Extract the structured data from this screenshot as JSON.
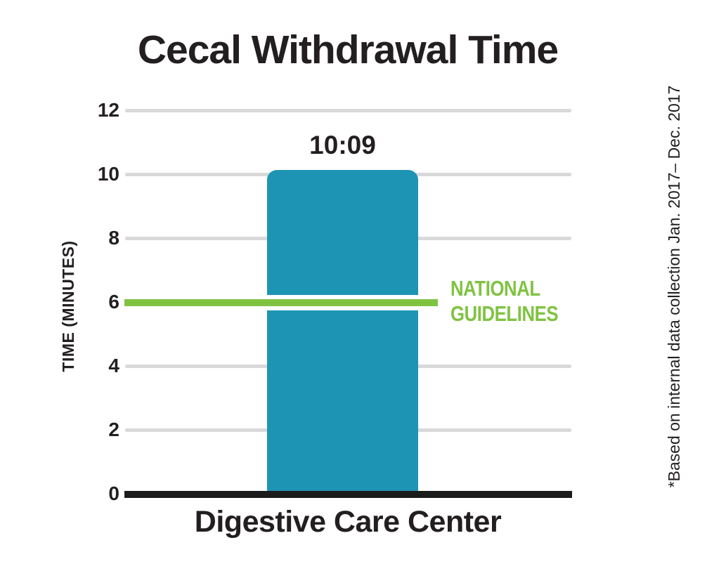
{
  "colors": {
    "bar": "#1E94B4",
    "guideline_green": "#80C342",
    "gridline": "#D9D9D9",
    "axis_black": "#1B1B1B",
    "text": "#231F20",
    "background": "#FFFFFF"
  },
  "chart_data": {
    "type": "bar",
    "title": "Cecal Withdrawal Time",
    "ylabel": "TIME (MINUTES)",
    "xlabel": "",
    "categories": [
      "Digestive Care Center"
    ],
    "values": [
      10.15
    ],
    "bar_labels": [
      "10:09"
    ],
    "ylim": [
      0,
      12
    ],
    "yticks": [
      12,
      10,
      8,
      6,
      4,
      2,
      0
    ],
    "ytick_labels": [
      "12",
      "10",
      "8",
      "6",
      "4",
      "2",
      "0"
    ],
    "grid": true,
    "legend_position": "none",
    "reference_line": {
      "value": 6,
      "label_line1": "NATIONAL",
      "label_line2": "GUIDELINES"
    },
    "footnote": "*Based on internal data collection Jan. 2017– Dec. 2017"
  }
}
